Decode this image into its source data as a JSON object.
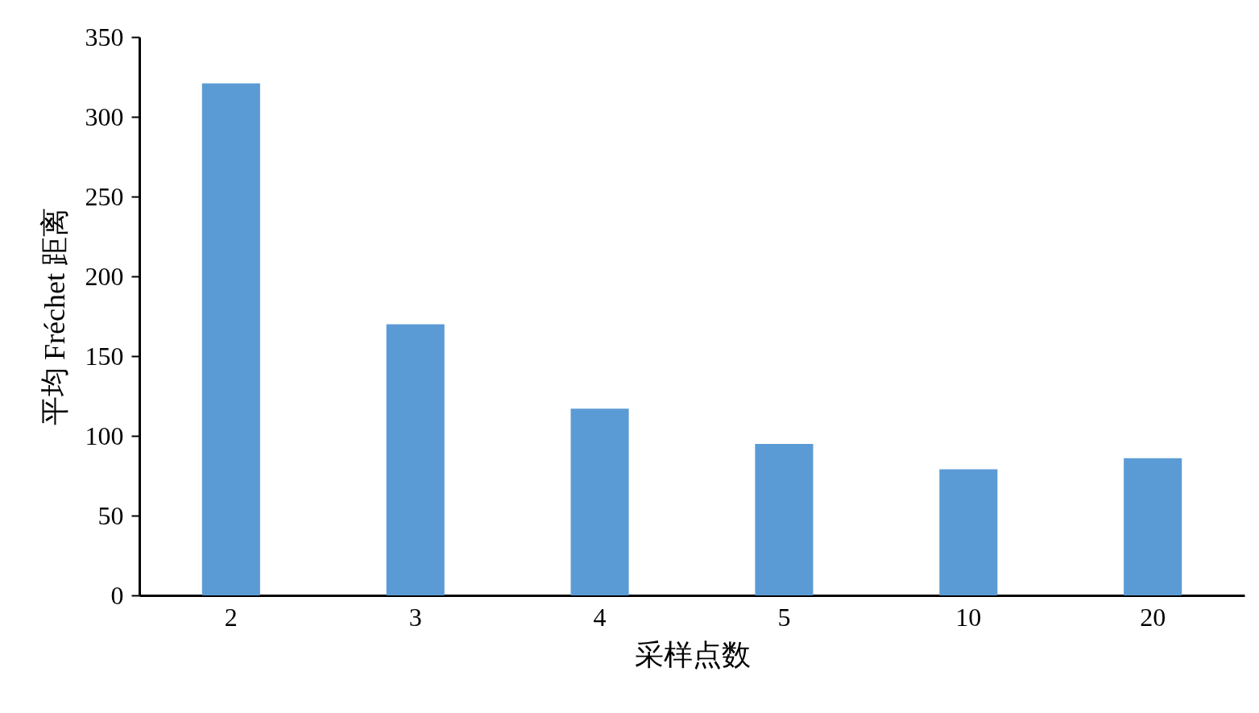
{
  "chart_data": {
    "type": "bar",
    "xlabel": "采样点数",
    "ylabel": "平均 Fréchet 距离",
    "categories": [
      "2",
      "3",
      "4",
      "5",
      "10",
      "20"
    ],
    "values": [
      321,
      170,
      117,
      95,
      79,
      86
    ],
    "color": "#5b9bd5",
    "ylim": [
      0,
      350
    ],
    "yticks": [
      0,
      50,
      100,
      150,
      200,
      250,
      300,
      350
    ],
    "grid": false
  }
}
